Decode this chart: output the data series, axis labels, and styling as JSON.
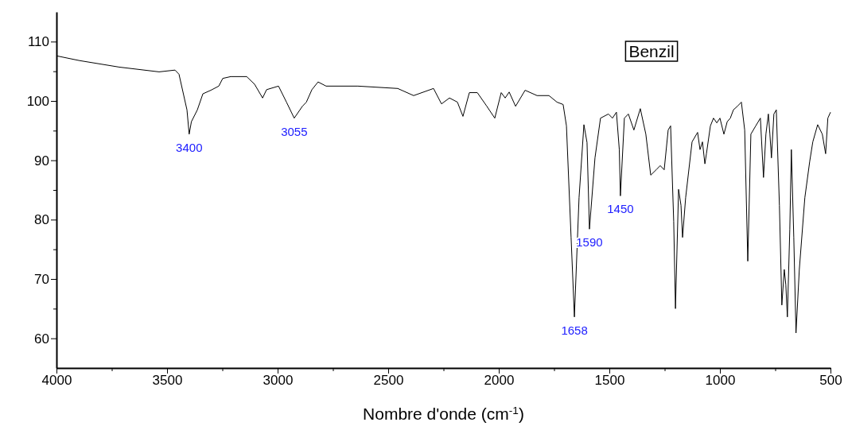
{
  "chart_data": {
    "type": "line",
    "xlabel": "Nombre d'onde (cm$^{-1}$)",
    "x": [
      4000,
      3896,
      3716,
      3536,
      3464,
      3446,
      3410,
      3400,
      3390,
      3363,
      3338,
      3302,
      3266,
      3248,
      3212,
      3140,
      3104,
      3068,
      3050,
      2996,
      2960,
      2925,
      2888,
      2870,
      2845,
      2817,
      2781,
      2637,
      2457,
      2385,
      2295,
      2259,
      2223,
      2187,
      2162,
      2133,
      2097,
      2054,
      2018,
      1989,
      1971,
      1953,
      1924,
      1881,
      1827,
      1773,
      1737,
      1709,
      1694,
      1673,
      1658,
      1637,
      1615,
      1601,
      1590,
      1565,
      1540,
      1504,
      1486,
      1468,
      1455,
      1450,
      1432,
      1414,
      1389,
      1360,
      1335,
      1313,
      1288,
      1270,
      1252,
      1234,
      1223,
      1209,
      1201,
      1187,
      1176,
      1169,
      1155,
      1126,
      1101,
      1090,
      1079,
      1068,
      1061,
      1043,
      1029,
      1014,
      1000,
      982,
      967,
      953,
      939,
      921,
      903,
      888,
      874,
      860,
      838,
      817,
      803,
      792,
      781,
      774,
      767,
      756,
      745,
      731,
      720,
      709,
      702,
      695,
      684,
      677,
      666,
      656,
      641,
      616,
      594,
      580,
      558,
      537,
      522,
      512,
      500
    ],
    "series": [
      {
        "color": "#000000",
        "values": [
          107.6,
          106.8,
          105.7,
          104.9,
          105.2,
          104.5,
          98.5,
          94.4,
          96.5,
          98.5,
          101.2,
          101.8,
          102.5,
          103.8,
          104.1,
          104.1,
          102.8,
          100.5,
          101.9,
          102.5,
          99.8,
          97.1,
          99.1,
          99.8,
          101.9,
          103.2,
          102.5,
          102.5,
          102.1,
          100.9,
          102.1,
          99.5,
          100.5,
          99.8,
          97.4,
          101.4,
          101.4,
          99.1,
          97.1,
          101.4,
          100.5,
          101.5,
          99.1,
          101.8,
          100.9,
          100.9,
          99.8,
          99.4,
          95.8,
          77,
          63.6,
          83.7,
          96,
          93,
          78.4,
          90.4,
          97.1,
          97.8,
          97.1,
          98.1,
          91.8,
          84,
          97.1,
          97.8,
          95.1,
          98.7,
          94.4,
          87.5,
          88.4,
          89.1,
          88.4,
          95.1,
          95.8,
          79.7,
          65,
          85.1,
          82.4,
          77,
          83.7,
          93.1,
          94.7,
          91.8,
          93.1,
          89.4,
          91.1,
          95.8,
          97.1,
          96.3,
          97.1,
          94.4,
          96.5,
          97.1,
          98.5,
          99.1,
          99.8,
          95.1,
          73,
          94.4,
          95.8,
          97.1,
          87.1,
          94.4,
          97.8,
          94.4,
          90.4,
          97.8,
          98.5,
          82.4,
          65.6,
          71.6,
          69,
          63.6,
          78.4,
          91.8,
          77,
          60.9,
          71.6,
          83.7,
          89.8,
          93.1,
          96,
          94.4,
          91.1,
          97.1,
          98.1
        ]
      }
    ],
    "xlim": [
      4000,
      500
    ],
    "xticks": [
      4000,
      {
        "value": 3750,
        "label": null
      },
      3500,
      {
        "value": 3250,
        "label": null
      },
      3000,
      {
        "value": 2750,
        "label": null
      },
      2500,
      {
        "value": 2250,
        "label": null
      },
      2000,
      {
        "value": 1750,
        "label": null
      },
      1500,
      {
        "value": 1250,
        "label": null
      },
      1000,
      {
        "value": 750,
        "label": null
      },
      500
    ],
    "ylim": [
      55,
      115
    ],
    "yticks": [
      60,
      {
        "value": 65,
        "label": null
      },
      70,
      {
        "value": 75,
        "label": null
      },
      80,
      {
        "value": 85,
        "label": null
      },
      90,
      {
        "value": 95,
        "label": null
      },
      100,
      {
        "value": 105,
        "label": null
      },
      110
    ],
    "marker": "none",
    "line_style": "solid",
    "annotations": [
      "Benzil",
      {
        "text": "3400",
        "x": 3400,
        "y": 94.4
      },
      {
        "text": "3055",
        "x": 2925,
        "y": 97.1
      },
      {
        "text": "1658",
        "x": 1658,
        "y": 63.6
      },
      {
        "text": "1590",
        "x": 1590,
        "y": 78.4
      },
      {
        "text": "1450",
        "x": 1450,
        "y": 84
      }
    ]
  }
}
